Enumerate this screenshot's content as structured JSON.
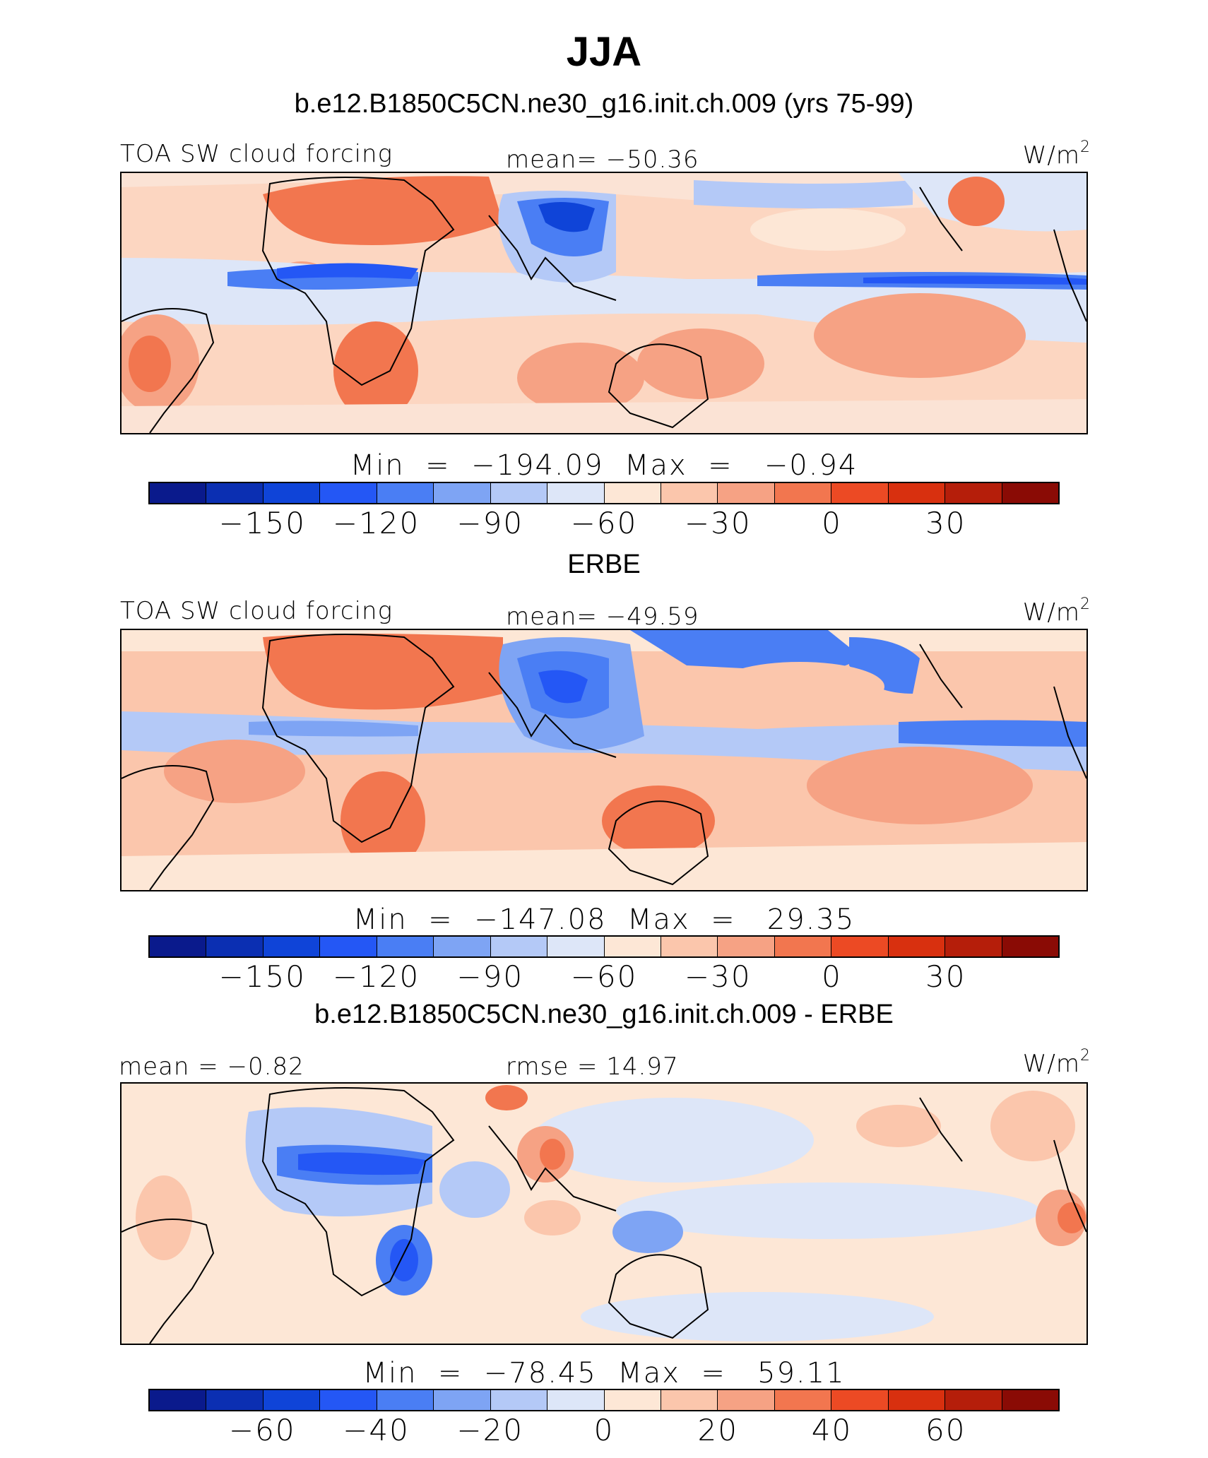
{
  "title": "JJA",
  "colors": [
    "#0a1a8c",
    "#0b2fb2",
    "#0f44d8",
    "#2457f5",
    "#4a7ef4",
    "#7ea4f4",
    "#b4c9f7",
    "#dde6f8",
    "#fde7d6",
    "#fbc6ac",
    "#f6a284",
    "#f2764f",
    "#ec4a24",
    "#d8300f",
    "#b51e0a",
    "#8a0b05"
  ],
  "panels": [
    {
      "case_title": "b.e12.B1850C5CN.ne30_g16.init.ch.009 (yrs 75-99)",
      "left_label": "TOA SW cloud forcing",
      "center_label": "mean= −50.36",
      "units": "W/m",
      "units_exp": "2",
      "min_max": "Min  =  −194.09  Max  =   −0.94",
      "ticks": [
        "−150",
        "−120",
        "−90",
        "−60",
        "−30",
        "0",
        "30"
      ]
    },
    {
      "case_title": "ERBE",
      "left_label": "TOA SW cloud forcing",
      "center_label": "mean= −49.59",
      "units": "W/m",
      "units_exp": "2",
      "min_max": "Min  =  −147.08  Max  =   29.35",
      "ticks": [
        "−150",
        "−120",
        "−90",
        "−60",
        "−30",
        "0",
        "30"
      ]
    },
    {
      "case_title": "b.e12.B1850C5CN.ne30_g16.init.ch.009 - ERBE",
      "left_label": "mean =   −0.82",
      "center_label": "rmse =   14.97",
      "units": "W/m",
      "units_exp": "2",
      "min_max": "Min  =  −78.45  Max  =   59.11",
      "ticks": [
        "−60",
        "−40",
        "−20",
        "0",
        "20",
        "40",
        "60"
      ]
    }
  ],
  "chart_data": [
    {
      "type": "heatmap",
      "title": "JJA",
      "subtitle": "b.e12.B1850C5CN.ne30_g16.init.ch.009 (yrs 75-99)",
      "variable": "TOA SW cloud forcing",
      "units": "W/m2",
      "mean": -50.36,
      "min": -194.09,
      "max": -0.94,
      "colorbar_levels": [
        -165,
        -150,
        -135,
        -120,
        -105,
        -90,
        -75,
        -60,
        -45,
        -30,
        -15,
        0,
        15,
        30,
        45
      ],
      "colorbar_tick_labels": [
        -150,
        -120,
        -90,
        -60,
        -30,
        0,
        30
      ],
      "legend": "bottom"
    },
    {
      "type": "heatmap",
      "subtitle": "ERBE",
      "variable": "TOA SW cloud forcing",
      "units": "W/m2",
      "mean": -49.59,
      "min": -147.08,
      "max": 29.35,
      "colorbar_levels": [
        -165,
        -150,
        -135,
        -120,
        -105,
        -90,
        -75,
        -60,
        -45,
        -30,
        -15,
        0,
        15,
        30,
        45
      ],
      "colorbar_tick_labels": [
        -150,
        -120,
        -90,
        -60,
        -30,
        0,
        30
      ],
      "legend": "bottom"
    },
    {
      "type": "heatmap",
      "subtitle": "b.e12.B1850C5CN.ne30_g16.init.ch.009 - ERBE",
      "units": "W/m2",
      "mean": -0.82,
      "rmse": 14.97,
      "min": -78.45,
      "max": 59.11,
      "colorbar_levels": [
        -70,
        -60,
        -50,
        -40,
        -30,
        -20,
        -10,
        0,
        10,
        20,
        30,
        40,
        50,
        60,
        70
      ],
      "colorbar_tick_labels": [
        -60,
        -40,
        -20,
        0,
        20,
        40,
        60
      ],
      "legend": "bottom"
    }
  ]
}
